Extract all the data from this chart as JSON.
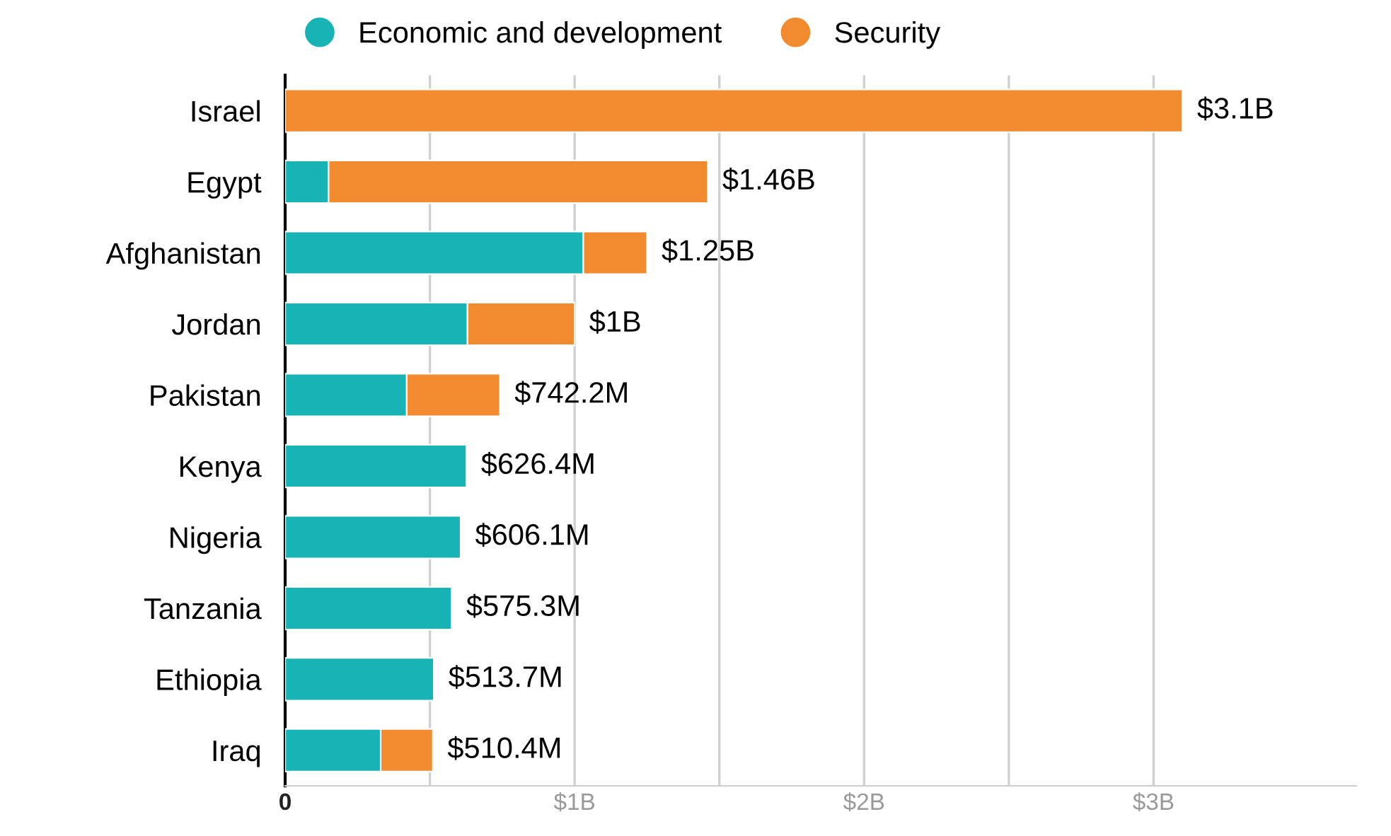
{
  "chart_data": {
    "type": "bar",
    "orientation": "horizontal",
    "stacked": true,
    "categories": [
      "Israel",
      "Egypt",
      "Afghanistan",
      "Jordan",
      "Pakistan",
      "Kenya",
      "Nigeria",
      "Tanzania",
      "Ethiopia",
      "Iraq"
    ],
    "series": [
      {
        "name": "Economic and development",
        "color": "#17b3b5",
        "values": [
          null,
          0.15,
          1.03,
          0.63,
          0.42,
          0.6264,
          0.6061,
          0.5753,
          0.5137,
          0.33
        ]
      },
      {
        "name": "Security",
        "color": "#f28b30",
        "values": [
          3.1,
          1.31,
          0.22,
          0.37,
          0.3222,
          null,
          null,
          null,
          null,
          0.1804
        ]
      }
    ],
    "totals": [
      "$3.1B",
      "$1.46B",
      "$1.25B",
      "$1B",
      "$742.2M",
      "$626.4M",
      "$606.1M",
      "$575.3M",
      "$513.7M",
      "$510.4M"
    ],
    "xlim": [
      0,
      3.7
    ],
    "xticks": [
      0,
      {
        "value": 0.5,
        "label": null
      },
      {
        "value": 1,
        "label": "$1B"
      },
      {
        "value": 1.5,
        "label": null
      },
      {
        "value": 2,
        "label": "$2B"
      },
      {
        "value": 2.5,
        "label": null
      },
      {
        "value": 3,
        "label": "$3B"
      }
    ],
    "grid": "x",
    "legend": "top left"
  }
}
